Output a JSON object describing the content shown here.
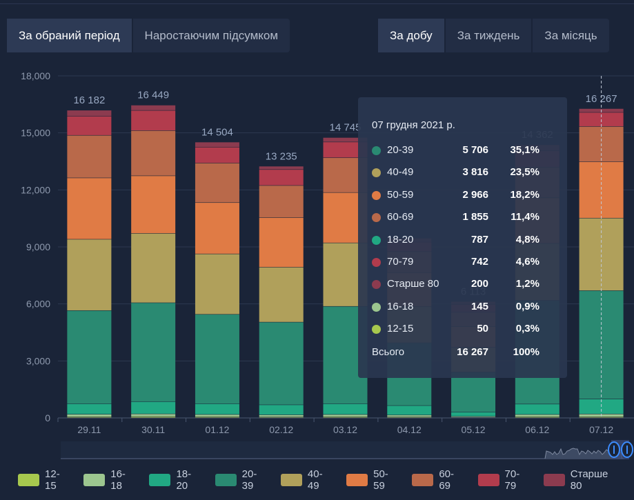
{
  "tabs_left": [
    {
      "label": "За обраний період",
      "active": true
    },
    {
      "label": "Наростаючим підсумком",
      "active": false
    }
  ],
  "tabs_right": [
    {
      "label": "За добу",
      "active": true
    },
    {
      "label": "За тиждень",
      "active": false
    },
    {
      "label": "За місяць",
      "active": false
    }
  ],
  "chart_data": {
    "type": "bar",
    "stacked": true,
    "categories": [
      "29.11",
      "30.11",
      "01.12",
      "02.12",
      "03.12",
      "04.12",
      "05.12",
      "06.12",
      "07.12"
    ],
    "totals": [
      "16 182",
      "16 449",
      "14 504",
      "13 235",
      "14 745",
      "",
      "6 113",
      "14 362",
      "16 267"
    ],
    "ylim": [
      0,
      18000
    ],
    "yticks": [
      0,
      3000,
      6000,
      9000,
      12000,
      15000,
      18000
    ],
    "ytick_labels": [
      "0",
      "3,000",
      "6,000",
      "9,000",
      "12,000",
      "15,000",
      "18,000"
    ],
    "grid": true,
    "legend_position": "bottom",
    "series": [
      {
        "name": "12-15",
        "color": "#a7c84e",
        "values": [
          50,
          60,
          50,
          40,
          50,
          40,
          20,
          50,
          50
        ]
      },
      {
        "name": "16-18",
        "color": "#9cc68f",
        "values": [
          130,
          140,
          120,
          110,
          120,
          100,
          50,
          120,
          145
        ]
      },
      {
        "name": "18-20",
        "color": "#21a883",
        "values": [
          560,
          650,
          570,
          530,
          570,
          500,
          230,
          550,
          787
        ]
      },
      {
        "name": "20-39",
        "color": "#2a8a72",
        "values": [
          4900,
          5200,
          4700,
          4350,
          5120,
          3300,
          2100,
          5450,
          5706
        ]
      },
      {
        "name": "40-49",
        "color": "#b0a05b",
        "values": [
          3750,
          3650,
          3180,
          2890,
          3340,
          1900,
          1300,
          3000,
          3816
        ]
      },
      {
        "name": "50-59",
        "color": "#e07b45",
        "values": [
          3230,
          3030,
          2700,
          2610,
          2650,
          1800,
          1100,
          2400,
          2966
        ]
      },
      {
        "name": "60-69",
        "color": "#b9694a",
        "values": [
          2240,
          2380,
          2080,
          1690,
          1830,
          1100,
          750,
          1600,
          1855
        ]
      },
      {
        "name": "70-79",
        "color": "#b23c4d",
        "values": [
          1010,
          1060,
          840,
          840,
          830,
          500,
          420,
          880,
          742
        ]
      },
      {
        "name": "Старше 80",
        "color": "#8c3b4f",
        "values": [
          312,
          279,
          264,
          175,
          235,
          200,
          143,
          312,
          200
        ]
      }
    ]
  },
  "tooltip": {
    "date": "07 грудня 2021 р.",
    "rows": [
      {
        "label": "20-39",
        "value": "5 706",
        "pct": "35,1%",
        "color": "#2a8a72"
      },
      {
        "label": "40-49",
        "value": "3 816",
        "pct": "23,5%",
        "color": "#b0a05b"
      },
      {
        "label": "50-59",
        "value": "2 966",
        "pct": "18,2%",
        "color": "#e07b45"
      },
      {
        "label": "60-69",
        "value": "1 855",
        "pct": "11,4%",
        "color": "#b9694a"
      },
      {
        "label": "18-20",
        "value": "787",
        "pct": "4,8%",
        "color": "#21a883"
      },
      {
        "label": "70-79",
        "value": "742",
        "pct": "4,6%",
        "color": "#b23c4d"
      },
      {
        "label": "Старше 80",
        "value": "200",
        "pct": "1,2%",
        "color": "#8c3b4f"
      },
      {
        "label": "16-18",
        "value": "145",
        "pct": "0,9%",
        "color": "#9cc68f"
      },
      {
        "label": "12-15",
        "value": "50",
        "pct": "0,3%",
        "color": "#a7c84e"
      }
    ],
    "total_label": "Всього",
    "total_value": "16 267",
    "total_pct": "100%"
  }
}
